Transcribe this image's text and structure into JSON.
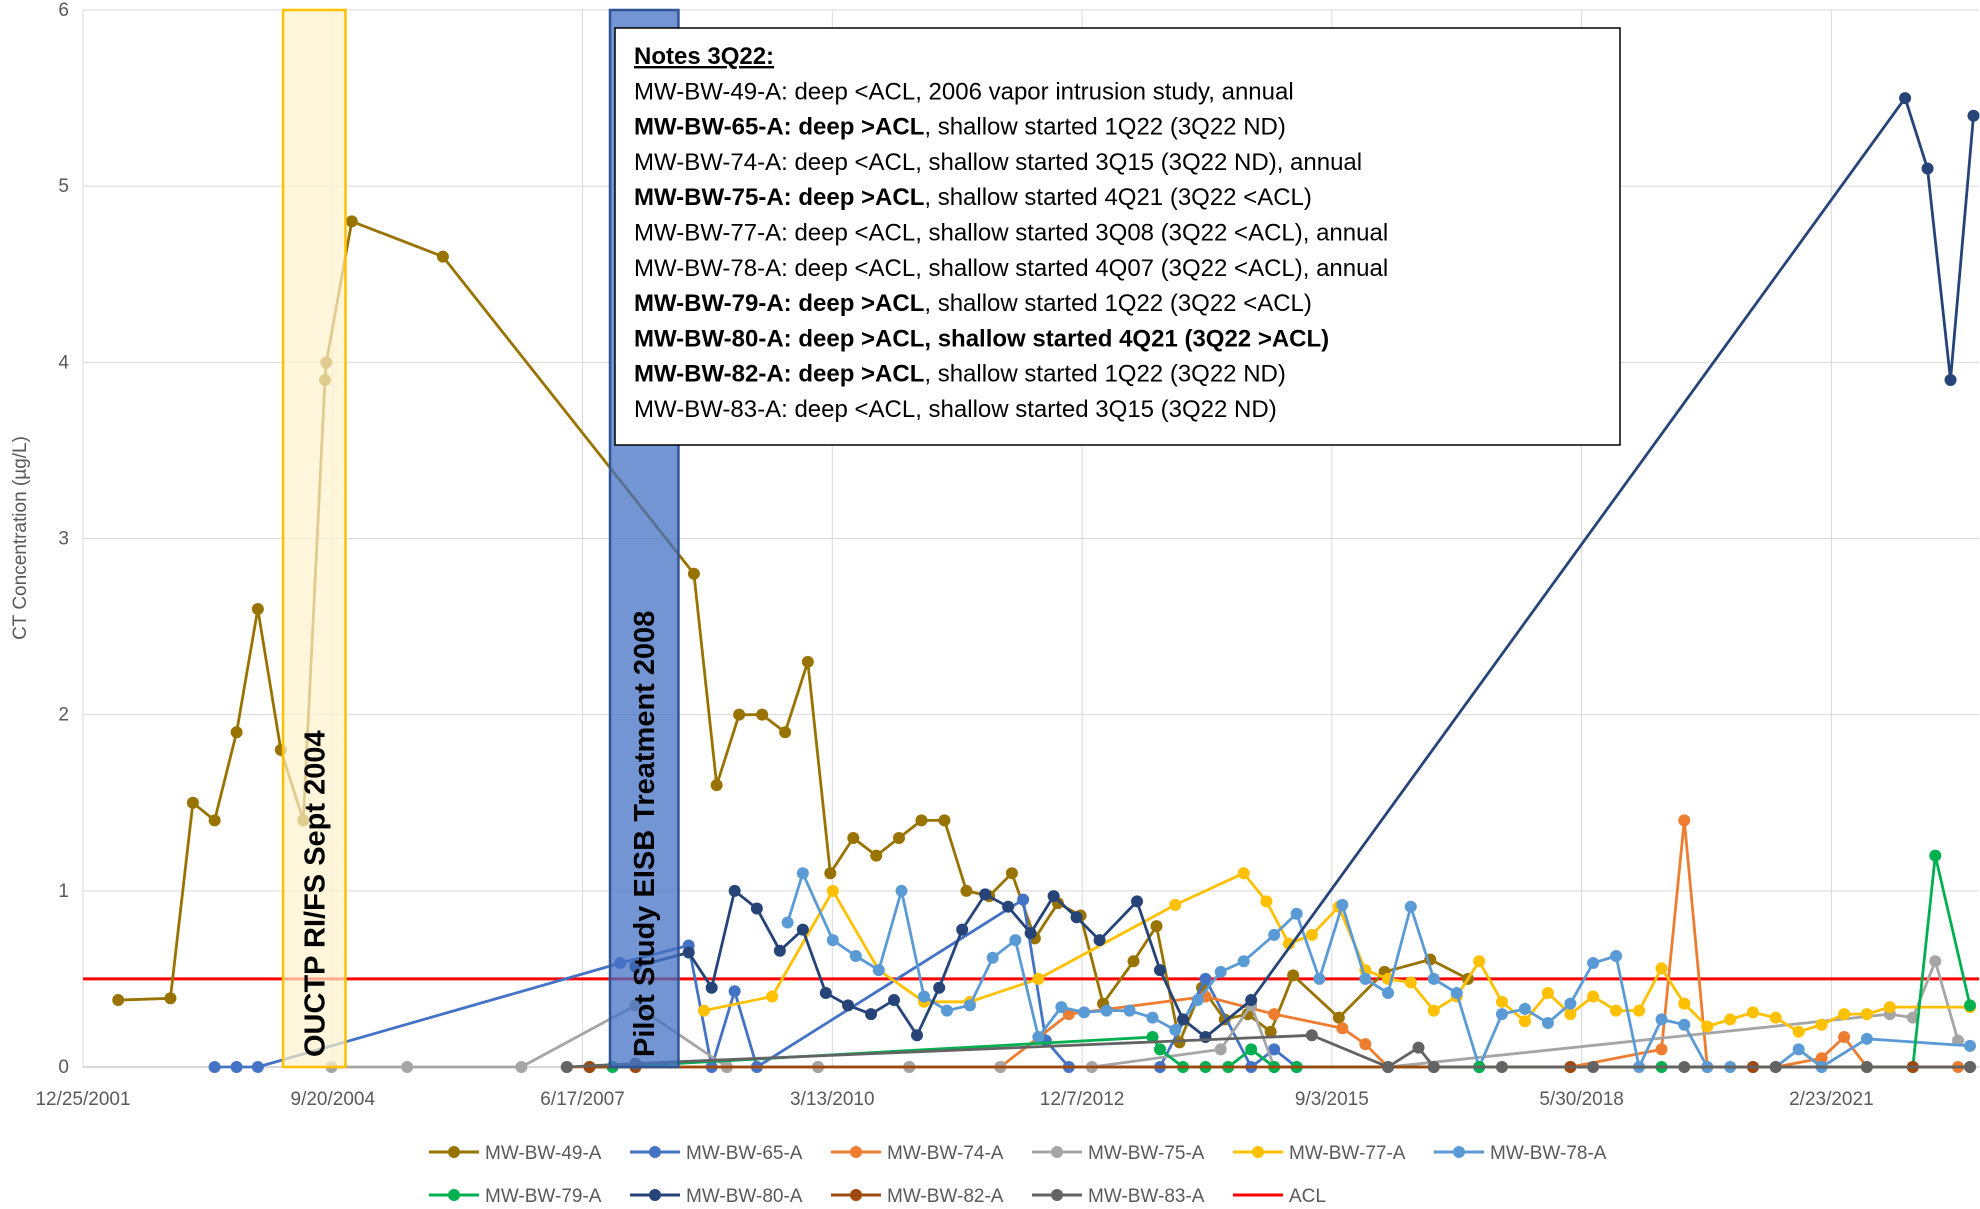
{
  "chart_data": {
    "type": "line",
    "y_label": "CT Concentration (µg/L)",
    "xlim": [
      "2001-12-25",
      "2022-10-07"
    ],
    "xticks": [
      {
        "value": "2001-12-25",
        "label": "12/25/2001"
      },
      {
        "value": "2004-09-20",
        "label": "9/20/2004"
      },
      {
        "value": "2007-06-17",
        "label": "6/17/2007"
      },
      {
        "value": "2010-03-13",
        "label": "3/13/2010"
      },
      {
        "value": "2012-12-07",
        "label": "12/7/2012"
      },
      {
        "value": "2015-09-03",
        "label": "9/3/2015"
      },
      {
        "value": "2018-05-30",
        "label": "5/30/2018"
      },
      {
        "value": "2021-02-23",
        "label": "2/23/2021"
      }
    ],
    "ylim": [
      0,
      6
    ],
    "yticks": [
      0,
      1,
      2,
      3,
      4,
      5,
      6
    ],
    "grid": true,
    "legend": "bottom",
    "series": [
      {
        "name": "MW-BW-49-A",
        "color": "#997300",
        "x": [
          "2002-05-15",
          "2002-12-10",
          "2003-03-10",
          "2003-06-05",
          "2003-09-01",
          "2003-11-25",
          "2004-02-25",
          "2004-05-25",
          "2004-08-20",
          "2004-08-25",
          "2004-12-05",
          "2005-12-05",
          "2008-09-05",
          "2008-12-05",
          "2009-03-05",
          "2009-06-05",
          "2009-09-05",
          "2009-12-05",
          "2010-03-05",
          "2010-06-05",
          "2010-09-05",
          "2010-12-05",
          "2011-03-05",
          "2011-06-05",
          "2011-09-01",
          "2011-12-01",
          "2012-03-01",
          "2012-06-01",
          "2012-09-01",
          "2012-12-01",
          "2013-03-01",
          "2013-07-01",
          "2013-10-01",
          "2014-01-01",
          "2014-04-01",
          "2014-07-01",
          "2014-10-01",
          "2015-01-01",
          "2015-04-01",
          "2015-10-01",
          "2016-04-01",
          "2016-10-01",
          "2017-03-01"
        ],
        "values": [
          0.38,
          0.39,
          1.5,
          1.4,
          1.9,
          2.6,
          1.8,
          1.4,
          3.9,
          4.0,
          4.8,
          4.6,
          2.8,
          1.6,
          2.0,
          2.0,
          1.9,
          2.3,
          1.1,
          1.3,
          1.2,
          1.3,
          1.4,
          1.4,
          1.0,
          0.97,
          1.1,
          0.73,
          0.93,
          0.86,
          0.36,
          0.6,
          0.8,
          0.14,
          0.45,
          0.27,
          0.3,
          0.2,
          0.52,
          0.28,
          0.54,
          0.61,
          0.5
        ]
      },
      {
        "name": "MW-BW-65-A",
        "color": "#4472c4",
        "x": [
          "2003-06-05",
          "2003-09-01",
          "2003-11-25",
          "2007-11-15",
          "2008-08-15",
          "2008-11-15",
          "2009-02-15",
          "2009-05-15",
          "2012-04-15",
          "2012-07-15",
          "2012-10-15",
          "2013-10-15",
          "2014-04-15",
          "2014-10-15",
          "2015-01-15",
          "2015-04-15"
        ],
        "values": [
          0,
          0,
          0,
          0.59,
          0.69,
          0,
          0.43,
          0,
          0.95,
          0.15,
          0,
          0,
          0.5,
          0,
          0.1,
          0
        ]
      },
      {
        "name": "MW-BW-74-A",
        "color": "#ed7d31",
        "x": [
          "2007-04-15",
          "2008-01-15",
          "2009-01-15",
          "2010-01-15",
          "2011-01-15",
          "2012-01-15",
          "2012-10-15",
          "2014-04-15",
          "2015-01-15",
          "2015-10-15",
          "2016-01-15",
          "2016-04-15",
          "2017-04-15",
          "2018-04-15",
          "2019-04-15",
          "2019-07-15",
          "2019-10-15",
          "2020-07-15",
          "2021-01-15",
          "2021-04-15",
          "2021-07-15",
          "2022-07-15"
        ],
        "values": [
          0,
          0,
          0,
          0,
          0,
          0,
          0.3,
          0.4,
          0.3,
          0.22,
          0.13,
          0,
          0,
          0,
          0.1,
          1.4,
          0,
          0,
          0.05,
          0.17,
          0,
          0
        ]
      },
      {
        "name": "MW-BW-75-A",
        "color": "#a5a5a5",
        "x": [
          "2004-09-15",
          "2005-07-15",
          "2006-10-15",
          "2008-01-15",
          "2009-01-15",
          "2010-01-15",
          "2011-01-15",
          "2012-01-15",
          "2013-01-15",
          "2014-06-15",
          "2014-10-15",
          "2015-01-15",
          "2016-04-15",
          "2021-10-15",
          "2022-01-15",
          "2022-04-15",
          "2022-07-15"
        ],
        "values": [
          0,
          0,
          0,
          0.35,
          0,
          0,
          0,
          0,
          0,
          0.1,
          0.35,
          0,
          0,
          0.3,
          0.28,
          0.6,
          0.15
        ]
      },
      {
        "name": "MW-BW-77-A",
        "color": "#ffc000",
        "x": [
          "2008-10-15",
          "2009-07-15",
          "2010-03-15",
          "2010-09-15",
          "2011-03-15",
          "2011-09-15",
          "2012-06-15",
          "2013-12-15",
          "2014-09-15",
          "2014-12-15",
          "2015-03-15",
          "2015-06-15",
          "2015-10-01",
          "2016-01-15",
          "2016-04-15",
          "2016-07-15",
          "2016-10-15",
          "2017-01-15",
          "2017-04-15",
          "2017-07-15",
          "2017-10-15",
          "2018-01-15",
          "2018-04-15",
          "2018-07-15",
          "2018-10-15",
          "2019-01-15",
          "2019-04-15",
          "2019-07-15",
          "2019-10-15",
          "2020-01-15",
          "2020-04-15",
          "2020-07-15",
          "2020-10-15",
          "2021-01-15",
          "2021-04-15",
          "2021-07-15",
          "2021-10-15",
          "2022-09-01"
        ],
        "values": [
          0.32,
          0.4,
          1.0,
          0.55,
          0.37,
          0.37,
          0.5,
          0.92,
          1.1,
          0.94,
          0.7,
          0.75,
          0.91,
          0.55,
          0.5,
          0.48,
          0.32,
          0.4,
          0.6,
          0.37,
          0.26,
          0.42,
          0.3,
          0.4,
          0.32,
          0.32,
          0.56,
          0.36,
          0.23,
          0.27,
          0.31,
          0.28,
          0.2,
          0.24,
          0.3,
          0.3,
          0.34,
          0.34
        ]
      },
      {
        "name": "MW-BW-78-A",
        "color": "#5b9bd5",
        "x": [
          "2009-09-15",
          "2009-11-15",
          "2010-03-15",
          "2010-06-15",
          "2010-09-15",
          "2010-12-15",
          "2011-03-15",
          "2011-06-15",
          "2011-09-15",
          "2011-12-15",
          "2012-03-15",
          "2012-06-15",
          "2012-09-15",
          "2012-12-15",
          "2013-03-15",
          "2013-06-15",
          "2013-09-15",
          "2013-12-15",
          "2014-03-15",
          "2014-06-15",
          "2014-09-15",
          "2015-01-15",
          "2015-04-15",
          "2015-07-15",
          "2015-10-15",
          "2016-01-15",
          "2016-04-15",
          "2016-07-15",
          "2016-10-15",
          "2017-01-15",
          "2017-04-15",
          "2017-07-15",
          "2017-10-15",
          "2018-01-15",
          "2018-04-15",
          "2018-07-15",
          "2018-10-15",
          "2019-01-15",
          "2019-04-15",
          "2019-07-15",
          "2019-10-15",
          "2020-01-15",
          "2020-04-15",
          "2020-07-15",
          "2020-10-15",
          "2021-01-15",
          "2021-07-15",
          "2022-09-01"
        ],
        "values": [
          0.82,
          1.1,
          0.72,
          0.63,
          0.55,
          1.0,
          0.4,
          0.32,
          0.35,
          0.62,
          0.72,
          0.17,
          0.34,
          0.31,
          0.32,
          0.32,
          0.28,
          0.21,
          0.38,
          0.54,
          0.6,
          0.75,
          0.87,
          0.5,
          0.92,
          0.5,
          0.42,
          0.91,
          0.5,
          0.42,
          0,
          0.3,
          0.33,
          0.25,
          0.36,
          0.59,
          0.63,
          0,
          0.27,
          0.24,
          0,
          0,
          0,
          0,
          0.1,
          0,
          0.16,
          0.12
        ]
      },
      {
        "name": "MW-BW-79-A",
        "color": "#00b050",
        "x": [
          "2007-07-15",
          "2007-10-15",
          "2013-09-15",
          "2013-10-15",
          "2014-01-15",
          "2014-04-15",
          "2014-07-15",
          "2014-10-15",
          "2015-01-15",
          "2015-04-15",
          "2017-04-15",
          "2019-04-15",
          "2022-01-15",
          "2022-04-15",
          "2022-09-01"
        ],
        "values": [
          0,
          0,
          0.17,
          0.1,
          0,
          0,
          0,
          0.1,
          0,
          0,
          0,
          0,
          0,
          1.2,
          0.35
        ]
      },
      {
        "name": "MW-BW-80-A",
        "color": "#264478",
        "x": [
          "2008-01-15",
          "2008-08-15",
          "2008-11-15",
          "2009-02-15",
          "2009-05-15",
          "2009-08-15",
          "2009-11-15",
          "2010-02-15",
          "2010-05-15",
          "2010-08-15",
          "2010-11-15",
          "2011-02-15",
          "2011-05-15",
          "2011-08-15",
          "2011-11-15",
          "2012-02-15",
          "2012-05-15",
          "2012-08-15",
          "2012-11-15",
          "2013-02-15",
          "2013-07-15",
          "2013-10-15",
          "2014-01-15",
          "2014-04-15",
          "2014-10-15",
          "2021-12-15",
          "2022-03-15",
          "2022-06-15",
          "2022-09-15"
        ],
        "values": [
          0.57,
          0.65,
          0.45,
          1.0,
          0.9,
          0.66,
          0.78,
          0.42,
          0.35,
          0.3,
          0.38,
          0.18,
          0.45,
          0.78,
          0.98,
          0.91,
          0.76,
          0.97,
          0.85,
          0.72,
          0.94,
          0.55,
          0.27,
          0.17,
          0.38,
          5.5,
          5.1,
          3.9,
          5.4
        ]
      },
      {
        "name": "MW-BW-82-A",
        "color": "#9e480e",
        "x": [
          "2007-07-15",
          "2008-01-15",
          "2016-10-15",
          "2018-04-15",
          "2020-04-15",
          "2022-01-15",
          "2022-09-01"
        ],
        "values": [
          0,
          0,
          0,
          0,
          0,
          0,
          0
        ]
      },
      {
        "name": "MW-BW-83-A",
        "color": "#636363",
        "x": [
          "2007-04-15",
          "2008-01-15",
          "2015-06-15",
          "2016-04-15",
          "2016-08-15",
          "2016-10-15",
          "2017-07-15",
          "2018-07-15",
          "2019-07-15",
          "2020-07-15",
          "2021-07-15",
          "2022-09-01"
        ],
        "values": [
          0,
          0.02,
          0.18,
          0,
          0.11,
          0,
          0,
          0,
          0,
          0,
          0,
          0
        ]
      }
    ],
    "acl": {
      "name": "ACL",
      "value": 0.5,
      "color": "#ff0000"
    },
    "annotations": [
      {
        "label": "OUCTP RI/FS Sept 2004",
        "start": "2004-03-05",
        "end": "2004-11-10",
        "fill": "#fff2cc",
        "stroke": "#ffc000"
      },
      {
        "label": "Pilot Study EISB Treatment 2008",
        "start": "2007-10-05",
        "end": "2008-07-05",
        "fill": "#4472c4",
        "stroke": "#2f5597"
      }
    ],
    "notes": {
      "title": "Notes 3Q22:",
      "lines": [
        [
          {
            "text": "MW-BW-49-A: deep <ACL, 2006 vapor intrusion study, annual",
            "bold": false
          }
        ],
        [
          {
            "text": "MW-BW-65-A: deep >ACL",
            "bold": true
          },
          {
            "text": ", shallow started 1Q22 (3Q22 ND)",
            "bold": false
          }
        ],
        [
          {
            "text": "MW-BW-74-A: deep <ACL, shallow started 3Q15 (3Q22 ND), annual",
            "bold": false
          }
        ],
        [
          {
            "text": "MW-BW-75-A: deep >ACL",
            "bold": true
          },
          {
            "text": ", shallow started 4Q21 (3Q22 <ACL)",
            "bold": false
          }
        ],
        [
          {
            "text": "MW-BW-77-A: deep <ACL, shallow started 3Q08 (3Q22 <ACL), annual",
            "bold": false
          }
        ],
        [
          {
            "text": "MW-BW-78-A: deep <ACL, shallow started 4Q07 (3Q22 <ACL), annual",
            "bold": false
          }
        ],
        [
          {
            "text": "MW-BW-79-A: deep >ACL",
            "bold": true
          },
          {
            "text": ", shallow started 1Q22 (3Q22 <ACL)",
            "bold": false
          }
        ],
        [
          {
            "text": "MW-BW-80-A: deep >ACL, shallow started 4Q21 (3Q22 >ACL)",
            "bold": true
          }
        ],
        [
          {
            "text": "MW-BW-82-A: deep >ACL",
            "bold": true
          },
          {
            "text": ", shallow started 1Q22 (3Q22 ND)",
            "bold": false
          }
        ],
        [
          {
            "text": "MW-BW-83-A: deep <ACL, shallow started 3Q15 (3Q22 ND)",
            "bold": false
          }
        ]
      ]
    }
  }
}
